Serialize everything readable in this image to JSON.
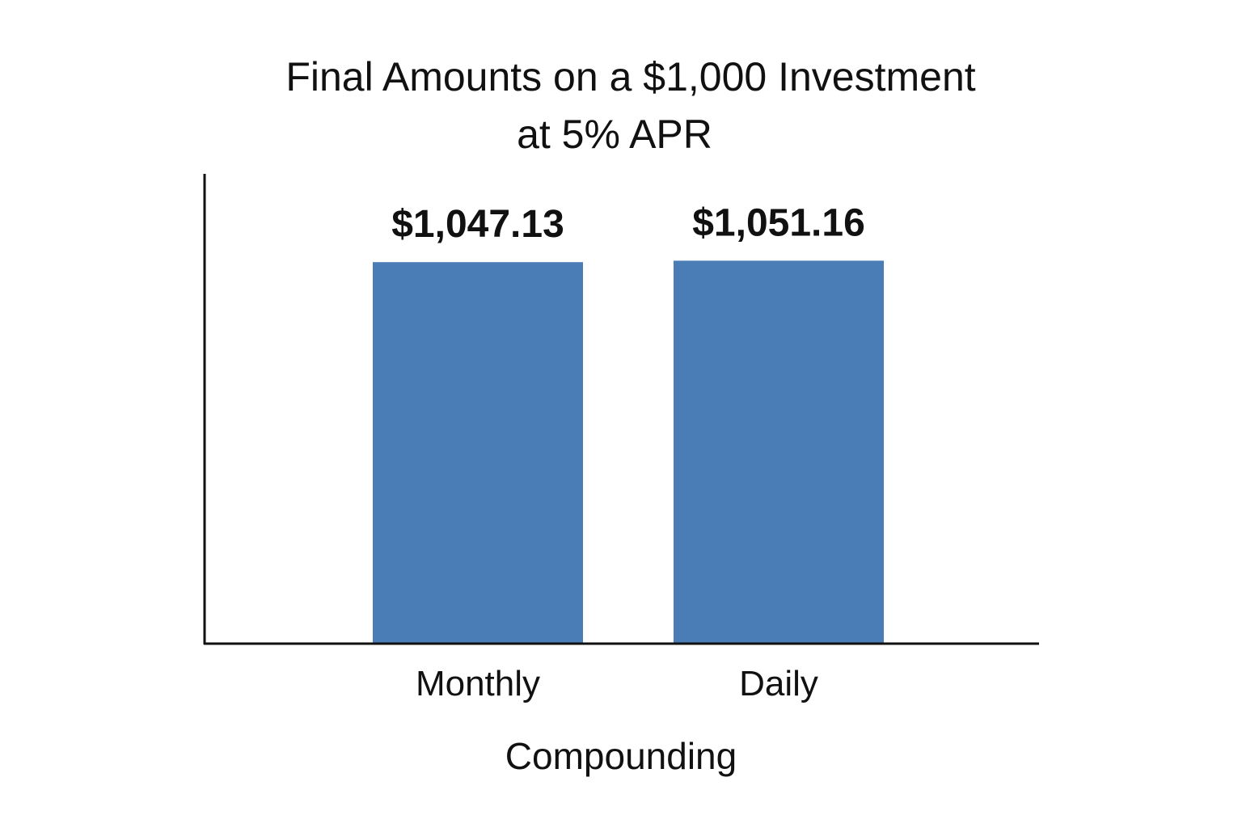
{
  "chart_data": {
    "type": "bar",
    "title_lines": [
      "Final Amounts on a $1,000 Investment",
      "at 5% APR"
    ],
    "xlabel": "Compounding",
    "ylabel": "",
    "categories": [
      "Monthly",
      "Daily"
    ],
    "values": [
      1047.13,
      1051.16
    ],
    "value_labels": [
      "$1,047.13",
      "$1,051.16"
    ],
    "ylim": [
      0,
      1290
    ],
    "grid": false,
    "legend": "none",
    "bar_color": "#4a7db5",
    "axis_color": "#111111"
  }
}
